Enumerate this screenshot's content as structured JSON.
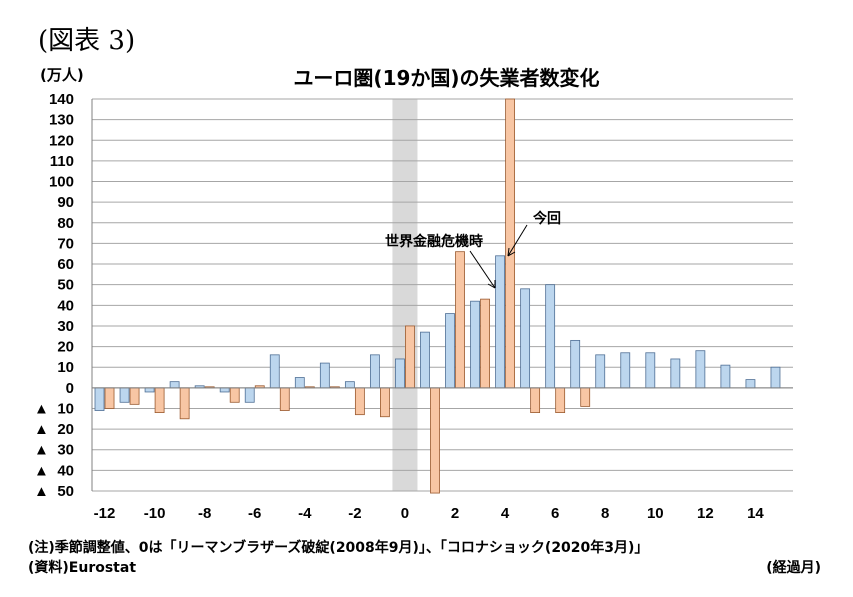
{
  "figure_label": "(図表 3)",
  "notes": {
    "note": "(注)季節調整値、0は「リーマンブラザーズ破綻(2008年9月)」、「コロナショック(2020年3月)」",
    "source": "(資料)Eurostat"
  },
  "colors": {
    "series_financial_crisis": "#bcd6ee",
    "series_current": "#f8c6a4",
    "bar_stroke_blue": "#4f6f95",
    "bar_stroke_orange": "#9a5a2f",
    "highlight_band": "#d9d9d9",
    "grid": "#a6a6a6"
  },
  "chart_data": {
    "type": "bar",
    "title": "ユーロ圏(19か国)の失業者数変化",
    "ylabel": "(万人)",
    "xlabel": "(経過月)",
    "ylim": [
      -50,
      140
    ],
    "ytick_values": [
      140,
      130,
      120,
      110,
      100,
      90,
      80,
      70,
      60,
      50,
      40,
      30,
      20,
      10,
      0,
      -10,
      -20,
      -30,
      -40,
      -50
    ],
    "ytick_labels": [
      "140",
      "130",
      "120",
      "110",
      "100",
      "90",
      "80",
      "70",
      "60",
      "50",
      "40",
      "30",
      "20",
      "10",
      "0",
      "▲ 10",
      "▲ 20",
      "▲ 30",
      "▲ 40",
      "▲ 50"
    ],
    "xtick_labels": [
      "-12",
      "-10",
      "-8",
      "-6",
      "-4",
      "-2",
      "0",
      "2",
      "4",
      "6",
      "8",
      "10",
      "12",
      "14"
    ],
    "xtick_values": [
      -12,
      -10,
      -8,
      -6,
      -4,
      -2,
      0,
      2,
      4,
      6,
      8,
      10,
      12,
      14
    ],
    "categories": [
      -12,
      -11,
      -10,
      -9,
      -8,
      -7,
      -6,
      -5,
      -4,
      -3,
      -2,
      -1,
      0,
      1,
      2,
      3,
      4,
      5,
      6,
      7,
      8,
      9,
      10,
      11,
      12,
      13,
      14,
      15
    ],
    "highlight_x": 0,
    "grid": true,
    "series": [
      {
        "name": "世界金融危機時",
        "values": [
          -11,
          -7,
          -2,
          3,
          1,
          -2,
          -7,
          16,
          5,
          12,
          3,
          16,
          14,
          27,
          36,
          42,
          64,
          48,
          50,
          23,
          16,
          17,
          17,
          14,
          18,
          11,
          4,
          10
        ]
      },
      {
        "name": "今回",
        "values": [
          -10,
          -8,
          -12,
          -15,
          0.5,
          -7,
          1,
          -11,
          0.5,
          0.5,
          -13,
          -14,
          30,
          -51,
          66,
          43,
          140,
          -12,
          -12,
          -9,
          null,
          null,
          null,
          null,
          null,
          null,
          null,
          null
        ]
      }
    ],
    "annotations": [
      {
        "text": "世界金融危機時",
        "series": 0
      },
      {
        "text": "今回",
        "series": 1
      }
    ]
  }
}
